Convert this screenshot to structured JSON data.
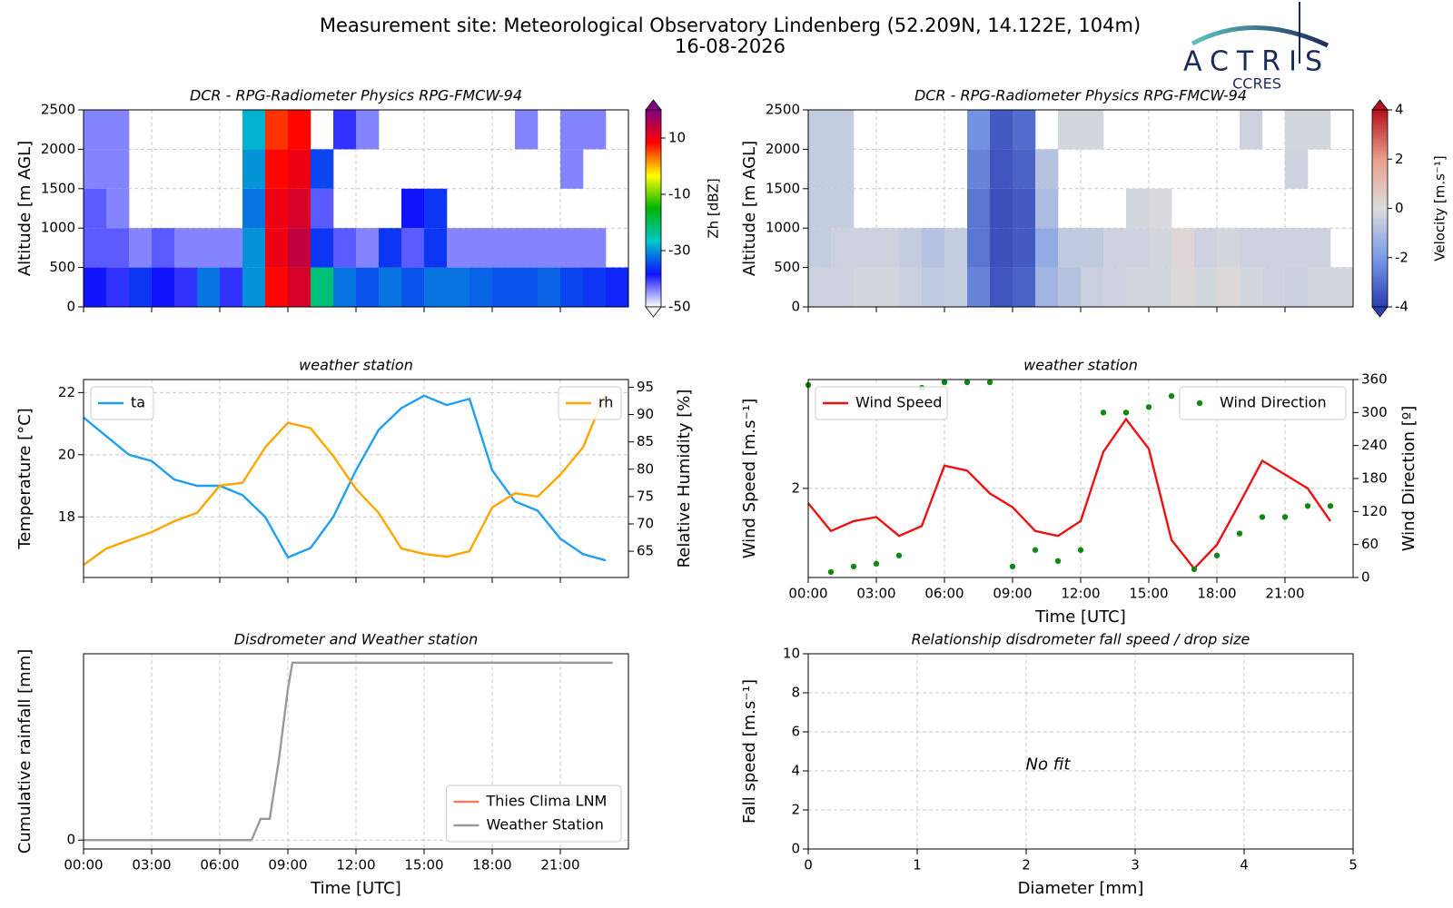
{
  "header": {
    "title": "Measurement site: Meteorological Observatory Lindenberg (52.209N, 14.122E, 104m)",
    "date": "16-08-2026"
  },
  "logo": {
    "name": "ACTRIS",
    "subtitle": "CCRES"
  },
  "chart_data": [
    {
      "type": "heatmap",
      "title": "DCR - RPG-Radiometer Physics RPG-FMCW-94",
      "ylabel": "Altitude [m AGL]",
      "xlim": [
        0,
        24
      ],
      "xticks": [
        0,
        3,
        6,
        9,
        12,
        15,
        18,
        21
      ],
      "ylim": [
        0,
        2500
      ],
      "yticks": [
        0,
        500,
        1000,
        1500,
        2000,
        2500
      ],
      "grid": true,
      "xbins": [
        0,
        1,
        2,
        3,
        4,
        5,
        6,
        7,
        8,
        9,
        10,
        11,
        12,
        13,
        14,
        15,
        16,
        17,
        18,
        19,
        20,
        21,
        22,
        23,
        24
      ],
      "ybins": [
        0,
        500,
        1000,
        1500,
        2000,
        2500
      ],
      "z": [
        [
          -38,
          -40,
          -36,
          -38,
          -40,
          -32,
          -40,
          -30,
          8,
          12,
          -22,
          -32,
          -34,
          -32,
          -34,
          -32,
          -32,
          -33,
          -34,
          -34,
          -33,
          -35,
          -36,
          -37
        ],
        [
          -42,
          -42,
          -44,
          -42,
          -44,
          -44,
          -44,
          -30,
          10,
          14,
          -36,
          -42,
          -44,
          -36,
          -42,
          -36,
          -44,
          -44,
          -44,
          -44,
          -44,
          -44,
          -44,
          null
        ],
        [
          -42,
          -44,
          null,
          null,
          null,
          null,
          null,
          -32,
          10,
          12,
          -42,
          null,
          null,
          null,
          -38,
          -36,
          null,
          null,
          null,
          null,
          null,
          null,
          null,
          null
        ],
        [
          -44,
          -44,
          null,
          null,
          null,
          null,
          null,
          -30,
          8,
          10,
          -35,
          null,
          null,
          null,
          null,
          null,
          null,
          null,
          null,
          null,
          null,
          -44,
          null,
          null
        ],
        [
          -44,
          -44,
          null,
          null,
          null,
          null,
          null,
          -28,
          6,
          8,
          null,
          -40,
          -44,
          null,
          null,
          null,
          null,
          null,
          null,
          -44,
          null,
          -44,
          -44,
          null
        ]
      ],
      "clim": [
        -50,
        20
      ],
      "colormap": [
        "#ffffff",
        "#1010ff",
        "#00c8c8",
        "#00b400",
        "#ffff00",
        "#ff0000",
        "#800080"
      ],
      "colorbar_label": "Zh [dBZ]",
      "cbar_ticks": [
        -50,
        -30,
        -10,
        10
      ]
    },
    {
      "type": "heatmap",
      "title": "DCR - RPG-Radiometer Physics RPG-FMCW-94",
      "ylabel": "Altitude [m AGL]",
      "xlim": [
        0,
        24
      ],
      "xticks": [
        0,
        3,
        6,
        9,
        12,
        15,
        18,
        21
      ],
      "ylim": [
        0,
        2500
      ],
      "yticks": [
        0,
        500,
        1000,
        1500,
        2000,
        2500
      ],
      "grid": true,
      "xbins": [
        0,
        1,
        2,
        3,
        4,
        5,
        6,
        7,
        8,
        9,
        10,
        11,
        12,
        13,
        14,
        15,
        16,
        17,
        18,
        19,
        20,
        21,
        22,
        23,
        24
      ],
      "ybins": [
        0,
        500,
        1000,
        1500,
        2000,
        2500
      ],
      "z": [
        [
          -0.3,
          -0.3,
          -0.2,
          -0.2,
          -0.4,
          -0.6,
          -0.5,
          -2.5,
          -3.5,
          -3.2,
          -1.2,
          -0.8,
          -0.4,
          -0.3,
          -0.2,
          -0.2,
          0.1,
          -0.2,
          0.1,
          -0.2,
          -0.3,
          -0.4,
          -0.2,
          -0.2
        ],
        [
          -0.5,
          -0.3,
          -0.3,
          -0.3,
          -0.5,
          -0.8,
          -0.5,
          -2.8,
          -3.6,
          -3.4,
          -1.5,
          -0.6,
          -0.6,
          -0.3,
          -0.3,
          -0.2,
          0.2,
          -0.3,
          -0.2,
          -0.3,
          -0.3,
          -0.3,
          -0.3,
          null
        ],
        [
          -0.5,
          -0.5,
          null,
          null,
          null,
          null,
          null,
          -2.8,
          -3.6,
          -3.4,
          -1.0,
          null,
          null,
          null,
          -0.2,
          -0.1,
          null,
          null,
          null,
          null,
          null,
          null,
          null,
          null
        ],
        [
          -0.5,
          -0.5,
          null,
          null,
          null,
          null,
          null,
          -2.5,
          -3.5,
          -3.2,
          -0.8,
          null,
          null,
          null,
          null,
          null,
          null,
          null,
          null,
          null,
          null,
          -0.3,
          null,
          null
        ],
        [
          -0.5,
          -0.5,
          null,
          null,
          null,
          null,
          null,
          -2.2,
          -3.4,
          -3.0,
          null,
          -0.2,
          -0.2,
          null,
          null,
          null,
          null,
          null,
          null,
          -0.3,
          null,
          -0.2,
          -0.2,
          null
        ]
      ],
      "clim": [
        -4,
        4
      ],
      "colormap": [
        "#2a3eb1",
        "#7b9be6",
        "#dcdcdc",
        "#e8a08a",
        "#b4101e"
      ],
      "colorbar_label": "Velocity [m.s⁻¹]",
      "cbar_ticks": [
        -4,
        -2,
        0,
        2,
        4
      ]
    },
    {
      "type": "line",
      "title": "weather station",
      "ylabel": "Temperature [°C]",
      "y2label": "Relative Humidity [%]",
      "x": [
        0,
        1,
        2,
        3,
        4,
        5,
        6,
        7,
        8,
        9,
        10,
        11,
        12,
        13,
        14,
        15,
        16,
        17,
        18,
        19,
        20,
        21,
        22,
        23
      ],
      "xlim": [
        0,
        24
      ],
      "xticks": [
        0,
        3,
        6,
        9,
        12,
        15,
        18,
        21
      ],
      "ylim": [
        16.05,
        22.42
      ],
      "yticks": [
        18,
        20,
        22
      ],
      "y2lim": [
        60.2,
        96.4
      ],
      "y2ticks": [
        65,
        70,
        75,
        80,
        85,
        90,
        95
      ],
      "grid": true,
      "series": [
        {
          "name": "ta",
          "color": "#1f9fee",
          "legend_loc": "upper left",
          "values": [
            21.2,
            20.6,
            20.0,
            19.8,
            19.2,
            19.0,
            19.0,
            18.7,
            18.0,
            16.7,
            17.0,
            18.0,
            19.5,
            20.8,
            21.5,
            21.9,
            21.6,
            21.8,
            19.5,
            18.5,
            18.2,
            17.3,
            16.8,
            16.6
          ]
        },
        {
          "name": "rh",
          "color": "#ffa500",
          "axis": "y2",
          "legend_loc": "upper right",
          "values": [
            62.5,
            65.5,
            67,
            68.5,
            70.5,
            72,
            77,
            77.5,
            84,
            88.5,
            87.5,
            82.4,
            76.4,
            72,
            65.5,
            64.5,
            64,
            65,
            73,
            75.6,
            75,
            79,
            84,
            94
          ]
        }
      ]
    },
    {
      "type": "line",
      "title": "weather station",
      "ylabel": "Wind Speed [m.s⁻¹]",
      "y2label": "Wind Direction [º]",
      "xlabel": "Time [UTC]",
      "x": [
        0,
        1,
        2,
        3,
        4,
        5,
        6,
        7,
        8,
        9,
        10,
        11,
        12,
        13,
        14,
        15,
        16,
        17,
        18,
        19,
        20,
        21,
        22,
        23
      ],
      "xlim": [
        0,
        24
      ],
      "xticks": [
        {
          "value": 0,
          "label": "00:00"
        },
        {
          "value": 3,
          "label": "03:00"
        },
        {
          "value": 6,
          "label": "06:00"
        },
        {
          "value": 9,
          "label": "09:00"
        },
        {
          "value": 12,
          "label": "12:00"
        },
        {
          "value": 15,
          "label": "15:00"
        },
        {
          "value": 18,
          "label": "18:00"
        },
        {
          "value": 21,
          "label": "21:00"
        }
      ],
      "ylim": [
        1.1,
        3.1
      ],
      "yticks": [
        2
      ],
      "y2lim": [
        0,
        360
      ],
      "y2ticks": [
        0,
        60,
        120,
        180,
        240,
        300,
        360
      ],
      "grid": true,
      "series": [
        {
          "name": "Wind Speed",
          "color": "#ee1111",
          "legend_loc": "upper left",
          "values": [
            1.85,
            1.57,
            1.67,
            1.71,
            1.52,
            1.62,
            2.23,
            2.18,
            1.95,
            1.81,
            1.57,
            1.52,
            1.67,
            2.37,
            2.7,
            2.4,
            1.48,
            1.19,
            1.43,
            1.85,
            2.28,
            2.14,
            2.0,
            1.67
          ]
        },
        {
          "name": "Wind Direction",
          "color": "#118811",
          "axis": "y2",
          "mode": "markers",
          "legend_loc": "upper right",
          "values": [
            350,
            10,
            20,
            25,
            40,
            345,
            355,
            355,
            355,
            20,
            50,
            30,
            50,
            300,
            300,
            310,
            330,
            15,
            40,
            80,
            110,
            110,
            130,
            130
          ]
        }
      ]
    },
    {
      "type": "line",
      "title": "Disdrometer and Weather station",
      "ylabel": "Cumulative rainfall [mm]",
      "xlabel": "Time [UTC]",
      "x": [
        0,
        7.4,
        7.8,
        8.2,
        8.6,
        9.0,
        9.2,
        23.3
      ],
      "xlim": [
        0,
        24
      ],
      "xticks": [
        {
          "value": 0,
          "label": "00:00"
        },
        {
          "value": 3,
          "label": "03:00"
        },
        {
          "value": 6,
          "label": "06:00"
        },
        {
          "value": 9,
          "label": "09:00"
        },
        {
          "value": 12,
          "label": "12:00"
        },
        {
          "value": 15,
          "label": "15:00"
        },
        {
          "value": 18,
          "label": "18:00"
        },
        {
          "value": 21,
          "label": "21:00"
        }
      ],
      "ylim": [
        -0.05,
        1.05
      ],
      "yticks": [
        0
      ],
      "grid": true,
      "legend_loc": "lower right",
      "series": [
        {
          "name": "Thies Clima LNM",
          "color": "#f08060",
          "values": [
            null,
            null,
            null,
            null,
            null,
            null,
            null,
            null
          ]
        },
        {
          "name": "Weather Station",
          "color": "#999999",
          "values": [
            0,
            0,
            0.12,
            0.12,
            0.45,
            0.85,
            1.0,
            1.0
          ]
        }
      ]
    },
    {
      "type": "scatter",
      "title": "Relationship disdrometer fall speed / drop size",
      "xlabel": "Diameter [mm]",
      "ylabel": "Fall speed [m.s⁻¹]",
      "xlim": [
        0,
        5
      ],
      "xticks": [
        0,
        1,
        2,
        3,
        4,
        5
      ],
      "ylim": [
        0,
        10
      ],
      "yticks": [
        0,
        2,
        4,
        6,
        8,
        10
      ],
      "grid": true,
      "annotation": "No fit"
    }
  ]
}
